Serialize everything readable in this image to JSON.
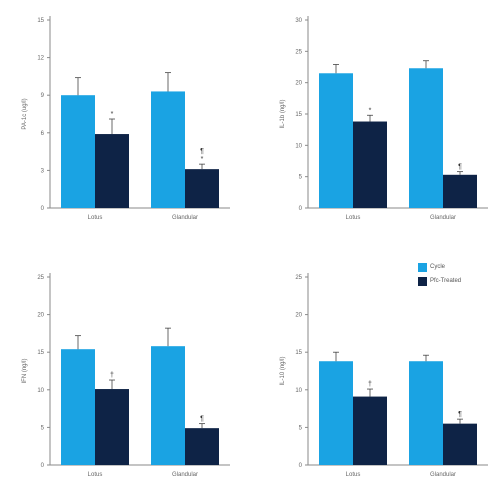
{
  "colors": {
    "control": "#1aa3e3",
    "treated": "#0e2346",
    "axis": "#8a8a8a",
    "text": "#666666"
  },
  "legend": {
    "items": [
      {
        "label": "Cycle",
        "color": "#1aa3e3"
      },
      {
        "label": "Pfc-Treated",
        "color": "#0e2346"
      }
    ]
  },
  "chart_data": [
    {
      "type": "bar",
      "ylabel": "PA-1c (ug/l)",
      "ylim": [
        0,
        15
      ],
      "yticks": [
        0,
        3,
        6,
        9,
        12,
        15
      ],
      "ytick_labels": [
        "0",
        "3",
        "6",
        "9",
        "12",
        "15"
      ],
      "categories": [
        "Lotus",
        "Glandular"
      ],
      "series": [
        {
          "values": [
            9.0,
            9.3
          ],
          "errors": [
            1.4,
            1.5
          ],
          "markers": [
            "",
            ""
          ]
        },
        {
          "values": [
            5.9,
            3.1
          ],
          "errors": [
            1.2,
            0.4
          ],
          "markers": [
            "*",
            "*"
          ]
        }
      ],
      "extra_markers": [
        "",
        "¶"
      ]
    },
    {
      "type": "bar",
      "ylabel": "IL-1b (ng/l)",
      "ylim": [
        0,
        30
      ],
      "yticks": [
        0,
        5,
        10,
        15,
        20,
        25,
        30
      ],
      "ytick_labels": [
        "0",
        "5",
        "10",
        "15",
        "20",
        "25",
        "30"
      ],
      "categories": [
        "Lotus",
        "Glandular"
      ],
      "series": [
        {
          "values": [
            21.5,
            22.3
          ],
          "errors": [
            1.4,
            1.2
          ],
          "markers": [
            "",
            ""
          ]
        },
        {
          "values": [
            13.8,
            5.3
          ],
          "errors": [
            1.0,
            0.5
          ],
          "markers": [
            "*",
            "¶"
          ]
        }
      ],
      "extra_markers": [
        "",
        ""
      ]
    },
    {
      "type": "bar",
      "ylabel": "IFN (ng/l)",
      "ylim": [
        0,
        25
      ],
      "yticks": [
        0,
        5,
        10,
        15,
        20,
        25
      ],
      "ytick_labels": [
        "0",
        "5",
        "10",
        "15",
        "20",
        "25"
      ],
      "categories": [
        "Lotus",
        "Glandular"
      ],
      "series": [
        {
          "values": [
            15.4,
            15.8
          ],
          "errors": [
            1.8,
            2.4
          ],
          "markers": [
            "",
            ""
          ]
        },
        {
          "values": [
            10.1,
            4.9
          ],
          "errors": [
            1.2,
            0.6
          ],
          "markers": [
            "†",
            "¶"
          ]
        }
      ],
      "extra_markers": [
        "",
        ""
      ]
    },
    {
      "type": "bar",
      "ylabel": "IL-10 (ng/l)",
      "ylim": [
        0,
        25
      ],
      "yticks": [
        0,
        5,
        10,
        15,
        20,
        25
      ],
      "ytick_labels": [
        "0",
        "5",
        "10",
        "15",
        "20",
        "25"
      ],
      "categories": [
        "Lotus",
        "Glandular"
      ],
      "series": [
        {
          "values": [
            13.8,
            13.8
          ],
          "errors": [
            1.2,
            0.8
          ],
          "markers": [
            "",
            ""
          ]
        },
        {
          "values": [
            9.1,
            5.5
          ],
          "errors": [
            1.0,
            0.6
          ],
          "markers": [
            "†",
            "¶"
          ]
        }
      ],
      "extra_markers": [
        "",
        ""
      ]
    }
  ]
}
